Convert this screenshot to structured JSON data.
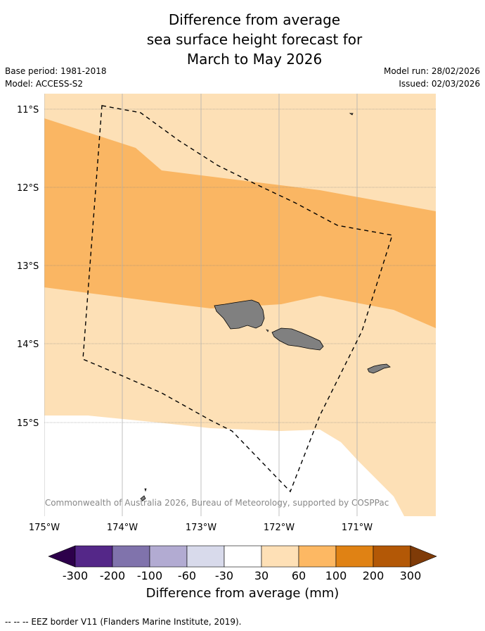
{
  "title": {
    "line1": "Difference from average",
    "line2": "sea surface height forecast for",
    "line3": "March to May 2026"
  },
  "meta": {
    "base_period": "Base period: 1981-2018",
    "model": "Model: ACCESS-S2",
    "model_run": "Model run: 28/02/2026",
    "issued": "Issued: 02/03/2026"
  },
  "map": {
    "lat_labels": [
      "11°S",
      "12°S",
      "13°S",
      "14°S",
      "15°S"
    ],
    "lon_labels": [
      "175°W",
      "174°W",
      "173°W",
      "172°W",
      "171°W"
    ],
    "credit": "© Commonwealth of Australia 2026, Bureau of Meteorology, supported by COSPPac",
    "colors": {
      "band_30_60": "#fde0b6",
      "band_60_100": "#fab663",
      "land": "#808080",
      "grid": "#7f7f7f"
    }
  },
  "colorbar": {
    "ticks": [
      "-300",
      "-200",
      "-100",
      "-60",
      "-30",
      "30",
      "60",
      "100",
      "200",
      "300"
    ],
    "colors": [
      "#2d004b",
      "#542788",
      "#8073ac",
      "#b2abd2",
      "#d8daeb",
      "#ffffff",
      "#fee0b6",
      "#fdb863",
      "#e08214",
      "#b35806",
      "#7f3b08"
    ],
    "label": "Difference from average (mm)"
  },
  "legend": {
    "eez": "--  --  -- EEZ border V11 (Flanders Marine Institute, 2019)."
  }
}
